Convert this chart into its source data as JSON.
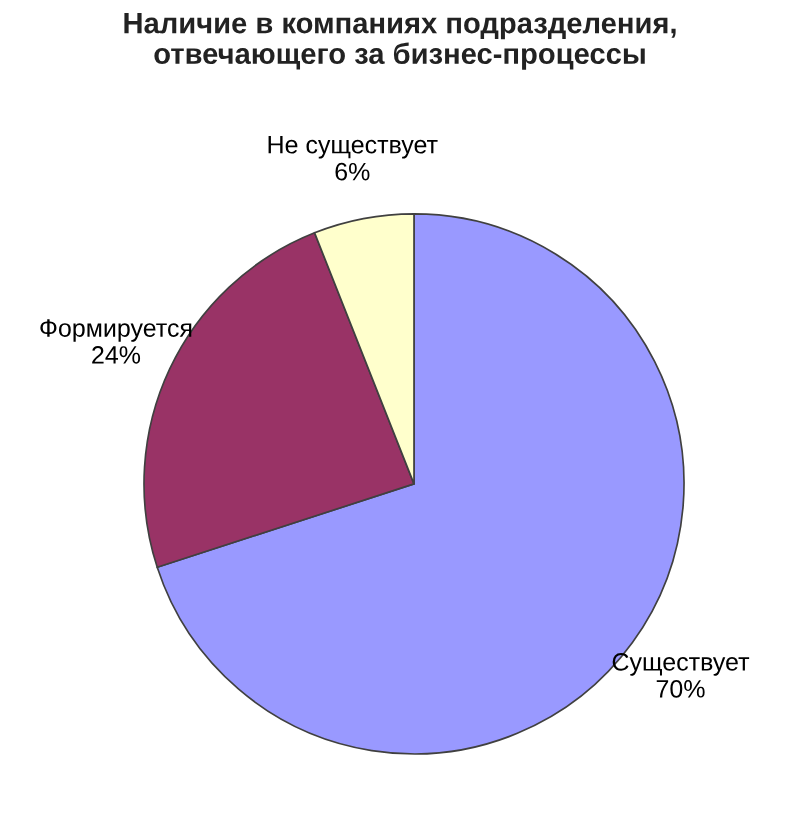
{
  "chart_data": {
    "type": "pie",
    "title": "Наличие в компаниях подразделения,\nотвечающего за бизнес-процессы",
    "categories": [
      "Существует",
      "Формируется",
      "Не существует"
    ],
    "values": [
      70,
      24,
      6
    ],
    "value_labels": [
      "70%",
      "24%",
      "6%"
    ],
    "colors": [
      "#9999ff",
      "#993366",
      "#ffffcc"
    ]
  }
}
